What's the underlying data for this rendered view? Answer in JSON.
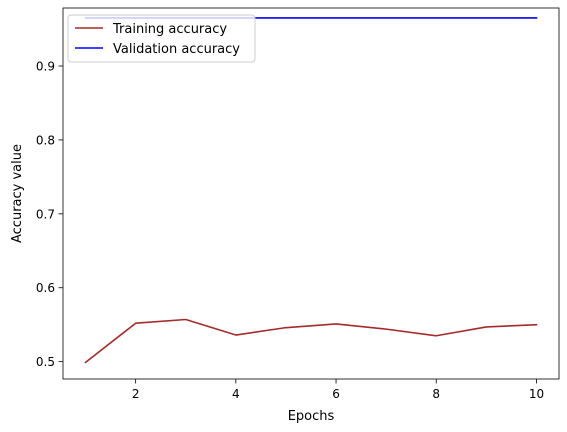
{
  "chart_data": {
    "type": "line",
    "title": "",
    "xlabel": "Epochs",
    "ylabel": "Accuracy value",
    "x": [
      1,
      2,
      3,
      4,
      5,
      6,
      7,
      8,
      9,
      10
    ],
    "xlim": [
      0.55,
      10.45
    ],
    "ylim": [
      0.4765,
      0.9785
    ],
    "xticks": [
      2,
      4,
      6,
      8,
      10
    ],
    "yticks": [
      0.5,
      0.6,
      0.7,
      0.8,
      0.9
    ],
    "grid": false,
    "legend_position": "top-left",
    "series": [
      {
        "name": "Training accuracy",
        "color": "#a52a2a",
        "values": [
          0.499,
          0.552,
          0.557,
          0.536,
          0.546,
          0.551,
          0.544,
          0.535,
          0.547,
          0.55
        ]
      },
      {
        "name": "Validation accuracy",
        "color": "#0000ff",
        "values": [
          0.965,
          0.965,
          0.965,
          0.965,
          0.965,
          0.965,
          0.965,
          0.965,
          0.965,
          0.965
        ]
      }
    ]
  }
}
